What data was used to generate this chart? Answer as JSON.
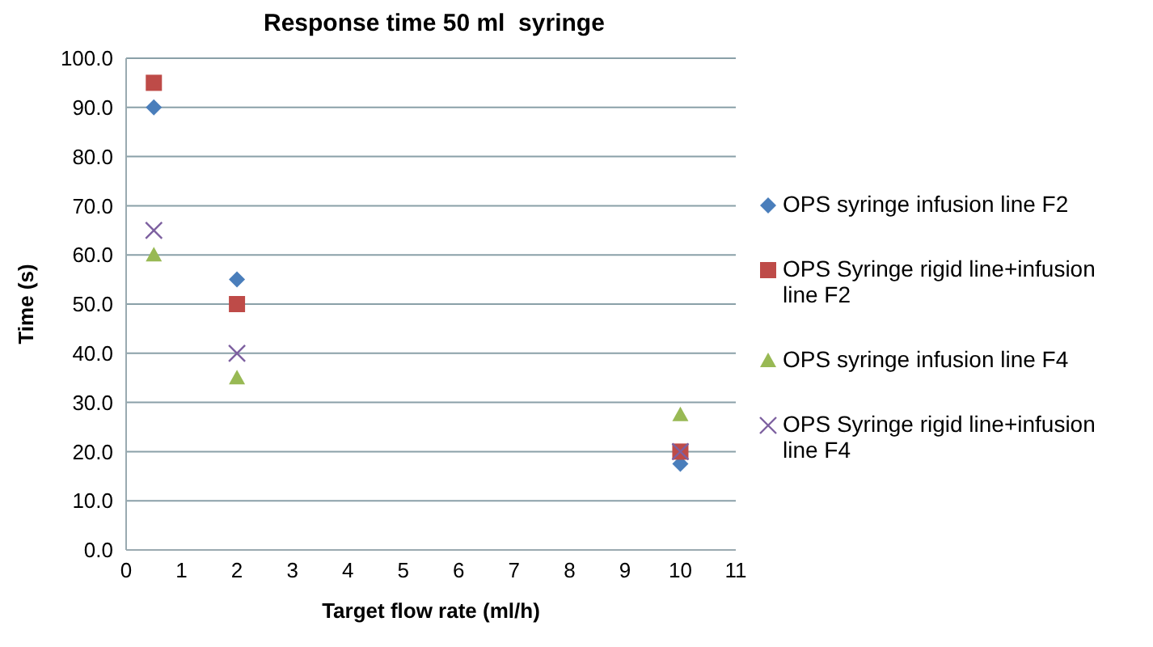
{
  "chart_data": {
    "type": "scatter",
    "title": "Response time 50 ml  syringe",
    "xlabel": "Target flow rate (ml/h)",
    "ylabel": "Time (s)",
    "xlim": [
      0,
      11
    ],
    "xticks": [
      0,
      1,
      2,
      3,
      4,
      5,
      6,
      7,
      8,
      9,
      10,
      11
    ],
    "ylim": [
      0,
      100
    ],
    "yticks": [
      {
        "value": 0,
        "label": "0.0"
      },
      {
        "value": 10,
        "label": "10.0"
      },
      {
        "value": 20,
        "label": "20.0"
      },
      {
        "value": 30,
        "label": "30.0"
      },
      {
        "value": 40,
        "label": "40.0"
      },
      {
        "value": 50,
        "label": "50.0"
      },
      {
        "value": 60,
        "label": "60.0"
      },
      {
        "value": 70,
        "label": "70.0"
      },
      {
        "value": 80,
        "label": "80.0"
      },
      {
        "value": 90,
        "label": "90.0"
      },
      {
        "value": 100,
        "label": "100.0"
      }
    ],
    "grid": "y",
    "legend": "right",
    "x": [
      0.5,
      2,
      10
    ],
    "series": [
      {
        "name": "OPS syringe infusion line F2",
        "color": "#4a7ebb",
        "marker": "diamond",
        "values": [
          90,
          55,
          17.5
        ]
      },
      {
        "name": "OPS Syringe rigid line+infusion line F2",
        "color": "#be4b48",
        "marker": "square",
        "values": [
          95,
          50,
          20
        ]
      },
      {
        "name": "OPS syringe infusion line F4",
        "color": "#98b954",
        "marker": "triangle",
        "values": [
          60,
          35,
          27.5
        ]
      },
      {
        "name": "OPS Syringe rigid line+infusion line F4",
        "color": "#7d60a0",
        "marker": "cross",
        "values": [
          65,
          40,
          20
        ]
      }
    ]
  }
}
